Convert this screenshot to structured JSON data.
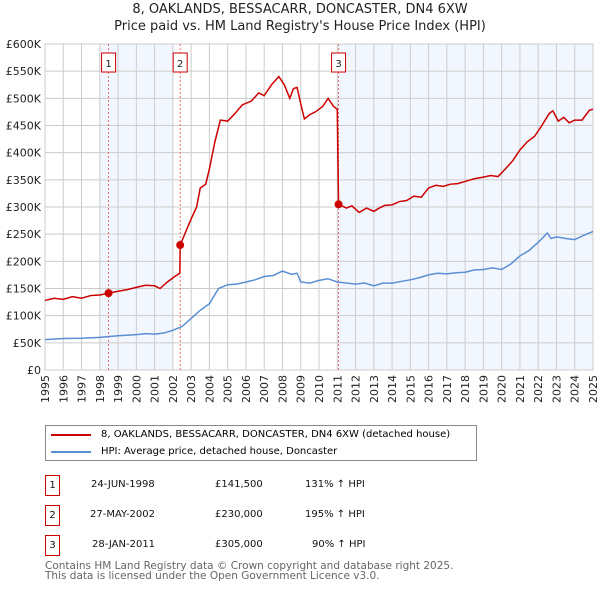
{
  "chart_data": {
    "type": "line",
    "title": "8, OAKLANDS, BESSACARR, DONCASTER, DN4 6XW",
    "subtitle": "Price paid vs. HM Land Registry's House Price Index (HPI)",
    "xlim": [
      1995,
      2025
    ],
    "ylim": [
      0,
      600000
    ],
    "x_ticks": [
      "1995",
      "1996",
      "1997",
      "1998",
      "1999",
      "2000",
      "2001",
      "2002",
      "2003",
      "2004",
      "2005",
      "2006",
      "2007",
      "2008",
      "2009",
      "2010",
      "2011",
      "2012",
      "2013",
      "2014",
      "2015",
      "2016",
      "2017",
      "2018",
      "2019",
      "2020",
      "2021",
      "2022",
      "2023",
      "2024",
      "2025"
    ],
    "y_ticks": [
      {
        "v": 0,
        "label": "£0"
      },
      {
        "v": 50000,
        "label": "£50K"
      },
      {
        "v": 100000,
        "label": "£100K"
      },
      {
        "v": 150000,
        "label": "£150K"
      },
      {
        "v": 200000,
        "label": "£200K"
      },
      {
        "v": 250000,
        "label": "£250K"
      },
      {
        "v": 300000,
        "label": "£300K"
      },
      {
        "v": 350000,
        "label": "£350K"
      },
      {
        "v": 400000,
        "label": "£400K"
      },
      {
        "v": 450000,
        "label": "£450K"
      },
      {
        "v": 500000,
        "label": "£500K"
      },
      {
        "v": 550000,
        "label": "£550K"
      },
      {
        "v": 600000,
        "label": "£600K"
      }
    ],
    "grid": true,
    "shaded_periods": [
      [
        1998,
        2002
      ],
      [
        2011,
        2025
      ]
    ],
    "series": [
      {
        "name": "8, OAKLANDS, BESSACARR, DONCASTER, DN4 6XW (detached house)",
        "color": "#cc0000",
        "points": [
          [
            1995,
            128000
          ],
          [
            1995.5,
            132000
          ],
          [
            1996,
            130000
          ],
          [
            1996.5,
            135000
          ],
          [
            1997,
            132000
          ],
          [
            1997.5,
            137000
          ],
          [
            1998,
            138000
          ],
          [
            1998.48,
            141500
          ],
          [
            1999,
            145000
          ],
          [
            1999.5,
            148000
          ],
          [
            2000,
            152000
          ],
          [
            2000.5,
            156000
          ],
          [
            2001,
            155000
          ],
          [
            2001.3,
            150000
          ],
          [
            2001.7,
            162000
          ],
          [
            2002.1,
            172000
          ],
          [
            2002.38,
            178000
          ],
          [
            2002.4,
            230000
          ],
          [
            2002.8,
            262000
          ],
          [
            2003,
            278000
          ],
          [
            2003.3,
            300000
          ],
          [
            2003.5,
            335000
          ],
          [
            2003.8,
            342000
          ],
          [
            2004,
            370000
          ],
          [
            2004.3,
            420000
          ],
          [
            2004.6,
            460000
          ],
          [
            2005,
            458000
          ],
          [
            2005.4,
            472000
          ],
          [
            2005.8,
            488000
          ],
          [
            2006.3,
            495000
          ],
          [
            2006.7,
            510000
          ],
          [
            2007,
            505000
          ],
          [
            2007.4,
            525000
          ],
          [
            2007.8,
            540000
          ],
          [
            2008.1,
            525000
          ],
          [
            2008.4,
            500000
          ],
          [
            2008.6,
            518000
          ],
          [
            2008.8,
            520000
          ],
          [
            2009,
            490000
          ],
          [
            2009.2,
            462000
          ],
          [
            2009.5,
            470000
          ],
          [
            2009.8,
            475000
          ],
          [
            2010.2,
            485000
          ],
          [
            2010.5,
            500000
          ],
          [
            2010.8,
            485000
          ],
          [
            2011.0,
            480000
          ],
          [
            2011.07,
            305000
          ],
          [
            2011.5,
            298000
          ],
          [
            2011.8,
            302000
          ],
          [
            2012.2,
            290000
          ],
          [
            2012.6,
            298000
          ],
          [
            2013,
            292000
          ],
          [
            2013.3,
            298000
          ],
          [
            2013.6,
            303000
          ],
          [
            2014,
            304000
          ],
          [
            2014.4,
            310000
          ],
          [
            2014.8,
            312000
          ],
          [
            2015.2,
            320000
          ],
          [
            2015.6,
            318000
          ],
          [
            2016,
            335000
          ],
          [
            2016.4,
            340000
          ],
          [
            2016.8,
            338000
          ],
          [
            2017.2,
            342000
          ],
          [
            2017.6,
            343000
          ],
          [
            2018,
            347000
          ],
          [
            2018.5,
            352000
          ],
          [
            2019,
            355000
          ],
          [
            2019.4,
            358000
          ],
          [
            2019.8,
            356000
          ],
          [
            2020.2,
            370000
          ],
          [
            2020.6,
            385000
          ],
          [
            2021,
            405000
          ],
          [
            2021.4,
            420000
          ],
          [
            2021.8,
            430000
          ],
          [
            2022.2,
            450000
          ],
          [
            2022.6,
            472000
          ],
          [
            2022.8,
            477000
          ],
          [
            2023.1,
            458000
          ],
          [
            2023.4,
            465000
          ],
          [
            2023.7,
            455000
          ],
          [
            2024,
            460000
          ],
          [
            2024.4,
            460000
          ],
          [
            2024.8,
            478000
          ],
          [
            2025,
            480000
          ]
        ]
      },
      {
        "name": "HPI: Average price, detached house, Doncaster",
        "color": "#5b8fd4",
        "points": [
          [
            1995,
            56000
          ],
          [
            1996,
            58000
          ],
          [
            1997,
            58500
          ],
          [
            1998,
            60000
          ],
          [
            1999,
            63000
          ],
          [
            2000,
            65000
          ],
          [
            2000.5,
            67000
          ],
          [
            2001,
            66000
          ],
          [
            2001.5,
            68000
          ],
          [
            2002,
            73000
          ],
          [
            2002.5,
            80000
          ],
          [
            2003,
            95000
          ],
          [
            2003.5,
            110000
          ],
          [
            2004,
            122000
          ],
          [
            2004.5,
            150000
          ],
          [
            2005,
            157000
          ],
          [
            2005.5,
            158000
          ],
          [
            2006,
            162000
          ],
          [
            2006.5,
            166000
          ],
          [
            2007,
            172000
          ],
          [
            2007.5,
            174000
          ],
          [
            2008,
            182000
          ],
          [
            2008.5,
            176000
          ],
          [
            2008.8,
            178000
          ],
          [
            2009,
            162000
          ],
          [
            2009.5,
            160000
          ],
          [
            2010,
            165000
          ],
          [
            2010.5,
            168000
          ],
          [
            2011,
            162000
          ],
          [
            2011.5,
            160000
          ],
          [
            2012,
            158000
          ],
          [
            2012.5,
            160000
          ],
          [
            2013,
            155000
          ],
          [
            2013.5,
            160000
          ],
          [
            2014,
            160000
          ],
          [
            2014.5,
            163000
          ],
          [
            2015,
            166000
          ],
          [
            2015.5,
            170000
          ],
          [
            2016,
            175000
          ],
          [
            2016.5,
            178000
          ],
          [
            2017,
            177000
          ],
          [
            2017.5,
            179000
          ],
          [
            2018,
            180000
          ],
          [
            2018.5,
            184000
          ],
          [
            2019,
            185000
          ],
          [
            2019.5,
            188000
          ],
          [
            2020,
            185000
          ],
          [
            2020.5,
            195000
          ],
          [
            2021,
            210000
          ],
          [
            2021.5,
            220000
          ],
          [
            2022,
            235000
          ],
          [
            2022.5,
            252000
          ],
          [
            2022.7,
            242000
          ],
          [
            2023,
            245000
          ],
          [
            2023.5,
            242000
          ],
          [
            2024,
            240000
          ],
          [
            2024.5,
            248000
          ],
          [
            2025,
            255000
          ]
        ]
      }
    ],
    "sales": [
      {
        "id": "1",
        "x": 1998.48,
        "price": 141500
      },
      {
        "id": "2",
        "x": 2002.4,
        "price": 230000
      },
      {
        "id": "3",
        "x": 2011.07,
        "price": 305000
      }
    ]
  },
  "legend": {
    "property": "8, OAKLANDS, BESSACARR, DONCASTER, DN4 6XW (detached house)",
    "hpi": "HPI: Average price, detached house, Doncaster"
  },
  "table": [
    {
      "id": "1",
      "date": "24-JUN-1998",
      "price": "£141,500",
      "hpi": "131% ↑ HPI"
    },
    {
      "id": "2",
      "date": "27-MAY-2002",
      "price": "£230,000",
      "hpi": "195% ↑ HPI"
    },
    {
      "id": "3",
      "date": "28-JAN-2011",
      "price": "£305,000",
      "hpi": "90% ↑ HPI"
    }
  ],
  "footer": {
    "line1": "Contains HM Land Registry data © Crown copyright and database right 2025.",
    "line2": "This data is licensed under the Open Government Licence v3.0."
  }
}
